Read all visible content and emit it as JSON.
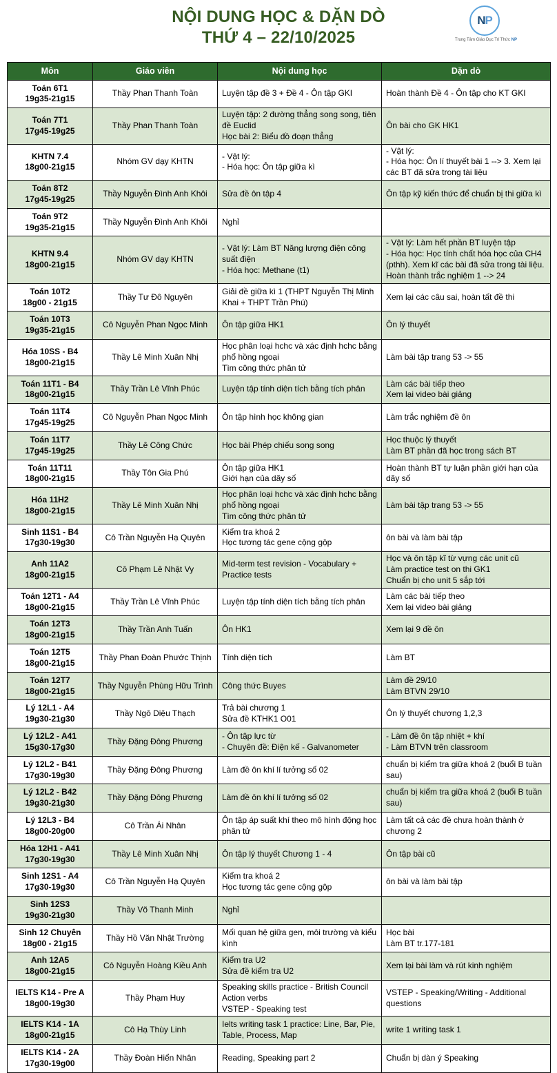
{
  "header": {
    "title_line1": "NỘI DUNG HỌC & DẶN DÒ",
    "title_line2": "THỨ 4 – 22/10/2025",
    "title_color": "#375D23",
    "logo": {
      "letter_n": "N",
      "letter_p": "P",
      "tagline_prefix": "Trung Tâm Giáo Dục Trí Thức ",
      "tagline_brand": "NP",
      "ring_color": "#5BA3DC"
    }
  },
  "table": {
    "header_bg": "#2E6B2E",
    "row_alt_bg": "#DAE6D2",
    "columns": [
      "Môn",
      "Giáo viên",
      "Nội dung học",
      "Dặn dò"
    ],
    "rows": [
      {
        "subject": "Toán 6T1",
        "time": "19g35-21g15",
        "teacher": "Thầy Phan Thanh Toàn",
        "content": [
          "Luyện tập đề 3 + Đề 4 - Ôn tập GKI"
        ],
        "notes": [
          "Hoàn thành Đề 4 - Ôn tập cho KT GKI"
        ]
      },
      {
        "subject": "Toán 7T1",
        "time": "17g45-19g25",
        "teacher": "Thầy Phan Thanh Toàn",
        "content": [
          "Luyện tập: 2 đường thẳng song song, tiên đề Euclid",
          "Học bài 2: Biểu đồ đoạn thẳng"
        ],
        "notes": [
          "Ôn bài cho GK HK1"
        ]
      },
      {
        "subject": "KHTN 7.4",
        "time": "18g00-21g15",
        "teacher": "Nhóm GV dạy KHTN",
        "content": [
          "- Vật lý:",
          "- Hóa học: Ôn tập giữa kì"
        ],
        "notes": [
          "- Vật lý:",
          "- Hóa học: Ôn lí thuyết bài 1 --> 3. Xem lại các BT đã sửa trong tài liệu"
        ]
      },
      {
        "subject": "Toán 8T2",
        "time": "17g45-19g25",
        "teacher": "Thầy Nguyễn Đình Anh Khôi",
        "content": [
          "Sửa đề ôn tập 4"
        ],
        "notes": [
          "Ôn tập kỹ kiến thức để chuẩn bị thi giữa kì"
        ]
      },
      {
        "subject": "Toán 9T2",
        "time": "19g35-21g15",
        "teacher": "Thầy Nguyễn Đình Anh Khôi",
        "content": [
          "Nghỉ"
        ],
        "notes": []
      },
      {
        "subject": "KHTN 9.4",
        "time": "18g00-21g15",
        "teacher": "Nhóm GV dạy KHTN",
        "content": [
          "- Vật lý: Làm BT Năng lượng điện công suất điện",
          "- Hóa học: Methane (t1)"
        ],
        "notes": [
          "- Vật lý: Làm hết phần BT luyện tập",
          "- Hóa học: Học tính chất hóa học của CH4 (pthh). Xem kĩ các bài đã sửa trong tài liệu. Hoàn thành trắc nghiệm 1 --> 24"
        ]
      },
      {
        "subject": "Toán 10T2",
        "time": "18g00 - 21g15",
        "teacher": "Thầy Tư Đô Nguyên",
        "content": [
          "Giải đề giữa kì 1 (THPT Nguyễn Thị Minh Khai + THPT Trần Phú)"
        ],
        "notes": [
          "Xem lại các câu sai, hoàn tất đề thi"
        ]
      },
      {
        "subject": "Toán 10T3",
        "time": "19g35-21g15",
        "teacher": "Cô Nguyễn Phan Ngọc Minh",
        "content": [
          "Ôn tập giữa HK1"
        ],
        "notes": [
          "Ôn lý thuyết"
        ]
      },
      {
        "subject": "Hóa 10SS - B4",
        "time": "18g00-21g15",
        "teacher": "Thầy Lê Minh Xuân Nhị",
        "content": [
          "Học phân loại hchc và xác định hchc bằng phổ hồng ngoại",
          "Tìm công thức phân tử"
        ],
        "notes": [
          "Làm bài tập trang 53 -> 55"
        ]
      },
      {
        "subject": "Toán 11T1 - B4",
        "time": "18g00-21g15",
        "teacher": "Thầy Trần Lê Vĩnh Phúc",
        "content": [
          "Luyện tập tính diện tích bằng tích phân"
        ],
        "notes": [
          "Làm các bài tiếp theo",
          "Xem lại video bài giảng"
        ]
      },
      {
        "subject": "Toán 11T4",
        "time": "17g45-19g25",
        "teacher": "Cô Nguyễn Phan Ngọc Minh",
        "content": [
          "Ôn tập hình học không gian"
        ],
        "notes": [
          "Làm trắc nghiệm đề ôn"
        ]
      },
      {
        "subject": "Toán 11T7",
        "time": "17g45-19g25",
        "teacher": "Thầy Lê Công Chức",
        "content": [
          "Học bài Phép chiếu song song"
        ],
        "notes": [
          "Học thuộc lý thuyết",
          "Làm BT phần đã học trong sách BT"
        ]
      },
      {
        "subject": "Toán 11T11",
        "time": "18g00-21g15",
        "teacher": "Thầy Tôn Gia Phú",
        "content": [
          "Ôn tập giữa HK1",
          "Giới hạn của dãy số"
        ],
        "notes": [
          "Hoàn thành BT tự luận phần giới hạn của dãy số"
        ]
      },
      {
        "subject": "Hóa 11H2",
        "time": "18g00-21g15",
        "teacher": "Thầy Lê Minh Xuân Nhị",
        "content": [
          "Học phân loại hchc và xác định hchc bằng phổ hồng ngoại",
          "Tìm công thức phân tử"
        ],
        "notes": [
          "Làm bài tập trang 53 -> 55"
        ]
      },
      {
        "subject": "Sinh 11S1 - B4",
        "time": "17g30-19g30",
        "teacher": "Cô Trần Nguyễn Hạ Quyên",
        "content": [
          "Kiểm tra khoá 2",
          "Học tương tác gene cộng gộp"
        ],
        "notes": [
          "ôn bài và làm bài tập"
        ]
      },
      {
        "subject": "Anh 11A2",
        "time": "18g00-21g15",
        "teacher": "Cô Phạm Lê Nhật Vy",
        "content": [
          "Mid-term test revision - Vocabulary + Practice tests"
        ],
        "notes": [
          "Học và ôn tập kĩ từ vựng các unit cũ",
          "Làm practice test on thi GK1",
          "Chuẩn bị cho unit 5 sắp tới"
        ]
      },
      {
        "subject": "Toán 12T1 - A4",
        "time": "18g00-21g15",
        "teacher": "Thầy Trần Lê Vĩnh Phúc",
        "content": [
          "Luyện tập tính diện tích bằng tích phân"
        ],
        "notes": [
          "Làm các bài tiếp theo",
          "Xem lại video bài giảng"
        ]
      },
      {
        "subject": "Toán 12T3",
        "time": "18g00-21g15",
        "teacher": "Thầy Trần Anh Tuấn",
        "content": [
          "Ôn HK1"
        ],
        "notes": [
          "Xem lại 9 đề ôn"
        ]
      },
      {
        "subject": "Toán 12T5",
        "time": "18g00-21g15",
        "teacher": "Thầy Phan Đoàn Phước Thịnh",
        "content": [
          "Tính diện tích"
        ],
        "notes": [
          "Làm BT"
        ]
      },
      {
        "subject": "Toán 12T7",
        "time": "18g00-21g15",
        "teacher": "Thầy Nguyễn Phùng Hữu Trình",
        "content": [
          "Công thức Buyes"
        ],
        "notes": [
          "Làm đề 29/10",
          "Làm BTVN 29/10"
        ]
      },
      {
        "subject": "Lý 12L1 - A4",
        "time": "19g30-21g30",
        "teacher": "Thầy Ngô Diệu Thạch",
        "content": [
          "Trả bài chương 1",
          "Sửa đề KTHK1 O01"
        ],
        "notes": [
          "Ôn lý thuyết chương 1,2,3"
        ]
      },
      {
        "subject": "Lý 12L2 - A41",
        "time": "15g30-17g30",
        "teacher": "Thầy Đặng Đông Phương",
        "content": [
          "- Ôn tập lực từ",
          "- Chuyên đề: Điện kế - Galvanometer"
        ],
        "notes": [
          "- Làm đề ôn tập nhiệt + khí",
          "- Làm BTVN trên classroom"
        ]
      },
      {
        "subject": "Lý 12L2 - B41",
        "time": "17g30-19g30",
        "teacher": "Thầy Đặng Đông Phương",
        "content": [
          "Làm đề ôn khí lí tưởng số 02"
        ],
        "notes": [
          "chuẩn bị kiểm tra giữa khoá 2 (buổi B tuần sau)"
        ]
      },
      {
        "subject": "Lý 12L2 - B42",
        "time": "19g30-21g30",
        "teacher": "Thầy Đặng Đông Phương",
        "content": [
          "Làm đề ôn khí lí tưởng số 02"
        ],
        "notes": [
          "chuẩn bị kiểm tra giữa khoá 2 (buổi B tuần sau)"
        ]
      },
      {
        "subject": "Lý 12L3 - B4",
        "time": "18g00-20g00",
        "teacher": "Cô Trần Ái Nhân",
        "content": [
          "Ôn tập áp suất khí theo mô hình động học phân tử"
        ],
        "notes": [
          "Làm tất cả các đề chưa hoàn thành ở chương 2"
        ]
      },
      {
        "subject": "Hóa 12H1 - A41",
        "time": "17g30-19g30",
        "teacher": "Thầy Lê Minh Xuân Nhị",
        "content": [
          "Ôn tập lý thuyết Chương 1 - 4"
        ],
        "notes": [
          "Ôn tập bài cũ"
        ]
      },
      {
        "subject": "Sinh 12S1 - A4",
        "time": "17g30-19g30",
        "teacher": "Cô Trần Nguyễn Hạ Quyên",
        "content": [
          "Kiểm tra khoá 2",
          "Học tương tác gene cộng gộp"
        ],
        "notes": [
          "ôn bài và làm bài tập"
        ]
      },
      {
        "subject": "Sinh 12S3",
        "time": "19g30-21g30",
        "teacher": "Thầy Võ Thanh Minh",
        "content": [
          "Nghỉ"
        ],
        "notes": []
      },
      {
        "subject": "Sinh 12 Chuyên",
        "time": "18g00 - 21g15",
        "teacher": "Thầy Hồ Văn Nhật Trường",
        "content": [
          "Mối quan hệ giữa gen, môi trường và kiểu kình"
        ],
        "notes": [
          "Học bài",
          "Làm BT tr.177-181"
        ]
      },
      {
        "subject": "Anh 12A5",
        "time": "18g00-21g15",
        "teacher": "Cô Nguyễn Hoàng Kiều Anh",
        "content": [
          "Kiểm tra U2",
          "Sửa đề kiểm tra U2"
        ],
        "notes": [
          "Xem lại bài làm và rút kinh nghiệm"
        ]
      },
      {
        "subject": "IELTS K14 - Pre A",
        "time": "18g00-19g30",
        "teacher": "Thầy Phạm Huy",
        "content": [
          "Speaking skills practice - British Council",
          "Action verbs",
          "VSTEP - Speaking test"
        ],
        "notes": [
          "VSTEP - Speaking/Writing - Additional questions"
        ]
      },
      {
        "subject": "IELTS K14 - 1A",
        "time": "18g00-21g15",
        "teacher": "Cô Hạ Thùy Linh",
        "content": [
          "Ielts writing task 1 practice: Line, Bar, Pie, Table, Process, Map"
        ],
        "notes": [
          "write 1 writing task 1"
        ]
      },
      {
        "subject": "IELTS K14 - 2A",
        "time": "17g30-19g00",
        "teacher": "Thầy Đoàn Hiển Nhân",
        "content": [
          "Reading, Speaking part 2"
        ],
        "notes": [
          "Chuẩn bị dàn ý Speaking"
        ]
      }
    ]
  }
}
